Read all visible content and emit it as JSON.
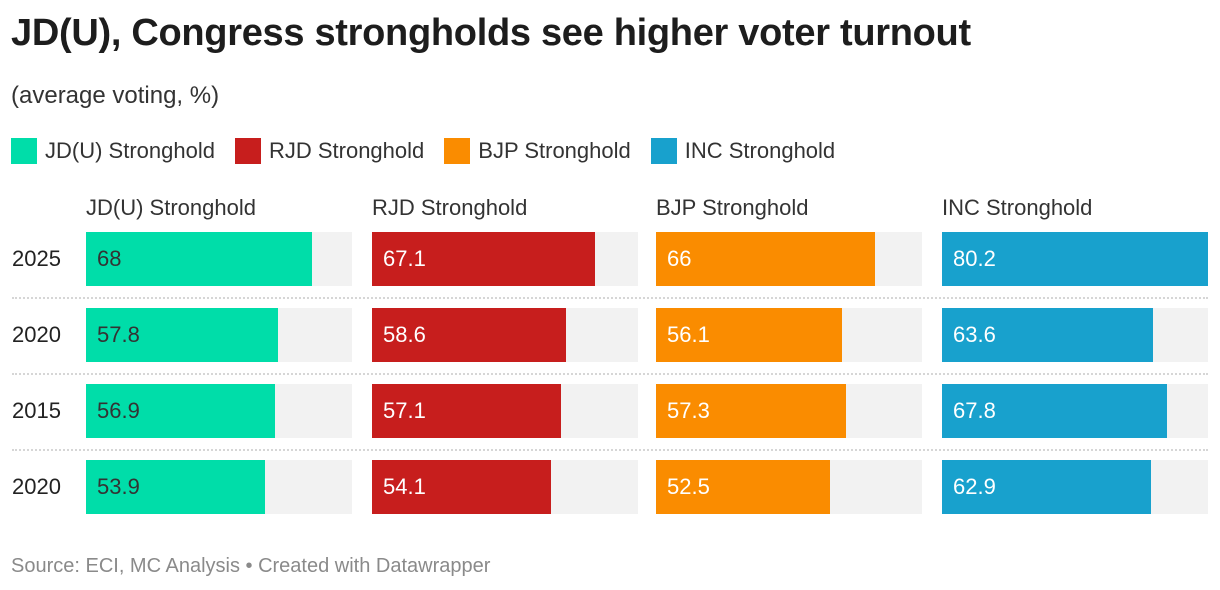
{
  "chart_data": {
    "type": "bar",
    "title": "JD(U), Congress strongholds see higher voter turnout",
    "subtitle": "(average voting, %)",
    "categories": [
      "2025",
      "2020",
      "2015",
      "2020"
    ],
    "xlim": [
      0,
      80.2
    ],
    "grid": false,
    "legend_placement": "top-left",
    "series": [
      {
        "name": "JD(U) Stronghold",
        "color": "#00DDA9",
        "label_color": "#333333",
        "values": [
          68,
          57.8,
          56.9,
          53.9
        ]
      },
      {
        "name": "RJD Stronghold",
        "color": "#C71E1D",
        "label_color": "#ffffff",
        "values": [
          67.1,
          58.6,
          57.1,
          54.1
        ]
      },
      {
        "name": "BJP Stronghold",
        "color": "#FA8C00",
        "label_color": "#ffffff",
        "values": [
          66,
          56.1,
          57.3,
          52.5
        ]
      },
      {
        "name": "INC Stronghold",
        "color": "#18A1CD",
        "label_color": "#ffffff",
        "values": [
          80.2,
          63.6,
          67.8,
          62.9
        ]
      }
    ],
    "value_labels": [
      [
        "68",
        "57.8",
        "56.9",
        "53.9"
      ],
      [
        "67.1",
        "58.6",
        "57.1",
        "54.1"
      ],
      [
        "66",
        "56.1",
        "57.3",
        "52.5"
      ],
      [
        "80.2",
        "63.6",
        "67.8",
        "62.9"
      ]
    ]
  },
  "footer": "Source: ECI, MC Analysis • Created with Datawrapper"
}
